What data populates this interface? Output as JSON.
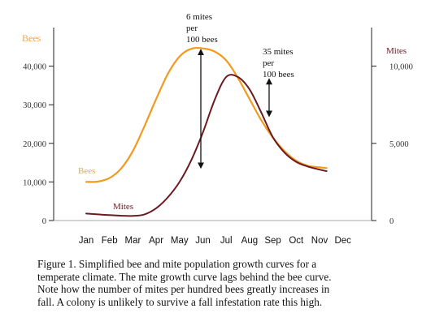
{
  "chart_data": {
    "type": "line",
    "categories": [
      "Jan",
      "Feb",
      "Mar",
      "Apr",
      "May",
      "Jun",
      "Jul",
      "Aug",
      "Sep",
      "Oct",
      "Nov",
      "Dec"
    ],
    "left_axis": {
      "label": "Bees",
      "ticks": [
        "0",
        "10,000",
        "20,000",
        "30,000",
        "40,000"
      ],
      "tick_values": [
        0,
        10000,
        20000,
        30000,
        40000
      ],
      "range": [
        0,
        50000
      ]
    },
    "right_axis": {
      "label": "Mites",
      "ticks": [
        "0",
        "5,000",
        "10,000"
      ],
      "tick_values": [
        0,
        5000,
        10000
      ],
      "range": [
        0,
        12500
      ]
    },
    "series": [
      {
        "name": "Bees",
        "axis": "left",
        "color": "#f29a1e",
        "points": [
          [
            0,
            10000
          ],
          [
            0.5,
            10100
          ],
          [
            1,
            11000
          ],
          [
            1.5,
            13500
          ],
          [
            2,
            18000
          ],
          [
            2.5,
            24500
          ],
          [
            3,
            31500
          ],
          [
            3.5,
            38000
          ],
          [
            4,
            42500
          ],
          [
            4.5,
            44500
          ],
          [
            5,
            44600
          ],
          [
            5.5,
            43800
          ],
          [
            6,
            41500
          ],
          [
            6.5,
            37000
          ],
          [
            7,
            31500
          ],
          [
            7.5,
            26000
          ],
          [
            8,
            21500
          ],
          [
            8.5,
            18000
          ],
          [
            9,
            15500
          ],
          [
            9.5,
            14200
          ],
          [
            10,
            13800
          ],
          [
            10.3,
            13600
          ]
        ]
      },
      {
        "name": "Mites",
        "axis": "right",
        "color": "#6a1a20",
        "points": [
          [
            0,
            450
          ],
          [
            0.5,
            400
          ],
          [
            1,
            350
          ],
          [
            1.5,
            310
          ],
          [
            2,
            300
          ],
          [
            2.5,
            400
          ],
          [
            3,
            800
          ],
          [
            3.5,
            1500
          ],
          [
            4,
            2500
          ],
          [
            4.5,
            3900
          ],
          [
            5,
            5700
          ],
          [
            5.5,
            7800
          ],
          [
            6,
            9300
          ],
          [
            6.5,
            9300
          ],
          [
            7,
            8500
          ],
          [
            7.5,
            7000
          ],
          [
            8,
            5400
          ],
          [
            8.5,
            4400
          ],
          [
            9,
            3800
          ],
          [
            9.5,
            3500
          ],
          [
            10,
            3300
          ],
          [
            10.3,
            3200
          ]
        ]
      }
    ],
    "annotations": [
      {
        "text": [
          "6 mites",
          "per",
          "100 bees"
        ],
        "month_index": 4.7,
        "from": 44500,
        "to": 13800,
        "axis": "left"
      },
      {
        "text": [
          "35 mites",
          "per",
          "100 bees"
        ],
        "month_index": 7.25,
        "from": 36500,
        "to": 27200,
        "axis": "left"
      }
    ],
    "series_labels": [
      {
        "text": "Bees",
        "series": 0
      },
      {
        "text": "Mites",
        "series": 1
      }
    ],
    "grid": false
  },
  "caption": {
    "lines": [
      "Figure 1.  Simplified bee and mite population growth curves for a",
      "temperate climate.  The mite growth curve lags behind the bee curve.",
      "Note how the number of mites per hundred bees  greatly increases in",
      "fall.  A colony is unlikely to survive a fall infestation rate this high."
    ]
  },
  "colors": {
    "bees": "#f29a1e",
    "mites": "#6a1a20",
    "axis": "#222222",
    "bee_label": "#f2a44a",
    "mite_label": "#6a1a20"
  }
}
